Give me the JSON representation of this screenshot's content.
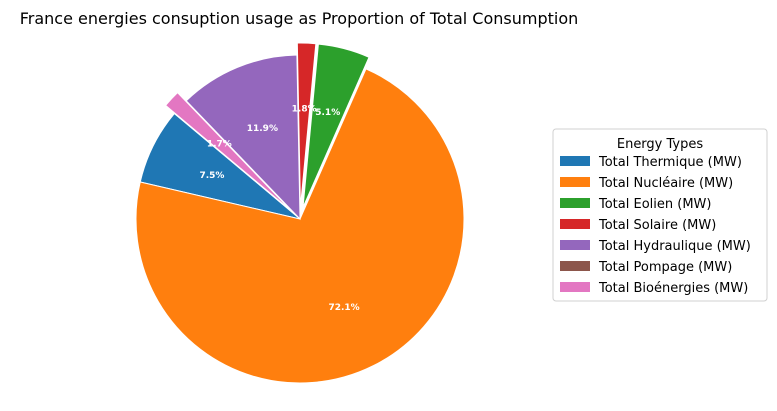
{
  "chart_data": {
    "type": "pie",
    "title": "France energies consuption usage as Proportion of Total Consumption",
    "legend_title": "Energy Types",
    "legend_position": "right",
    "start_angle_deg": 140,
    "direction": "counterclockwise",
    "slices": [
      {
        "label": "Total Thermique (MW)",
        "value": 7.5,
        "pct_label": "7.5%",
        "color": "#1f77b4",
        "exploded": false
      },
      {
        "label": "Total Nucléaire (MW)",
        "value": 72.1,
        "pct_label": "72.1%",
        "color": "#ff7f0e",
        "exploded": false
      },
      {
        "label": "Total Eolien (MW)",
        "value": 5.1,
        "pct_label": "5.1%",
        "color": "#2ca02c",
        "exploded": true
      },
      {
        "label": "Total Solaire (MW)",
        "value": 1.8,
        "pct_label": "1.8%",
        "color": "#d62728",
        "exploded": true
      },
      {
        "label": "Total Hydraulique (MW)",
        "value": 11.9,
        "pct_label": "11.9%",
        "color": "#9467bd",
        "exploded": false
      },
      {
        "label": "Total Pompage (MW)",
        "value": 0.0,
        "pct_label": "",
        "color": "#8c564b",
        "exploded": false
      },
      {
        "label": "Total Bioénergies (MW)",
        "value": 1.7,
        "pct_label": "1.7%",
        "color": "#e377c2",
        "exploded": true
      }
    ]
  }
}
